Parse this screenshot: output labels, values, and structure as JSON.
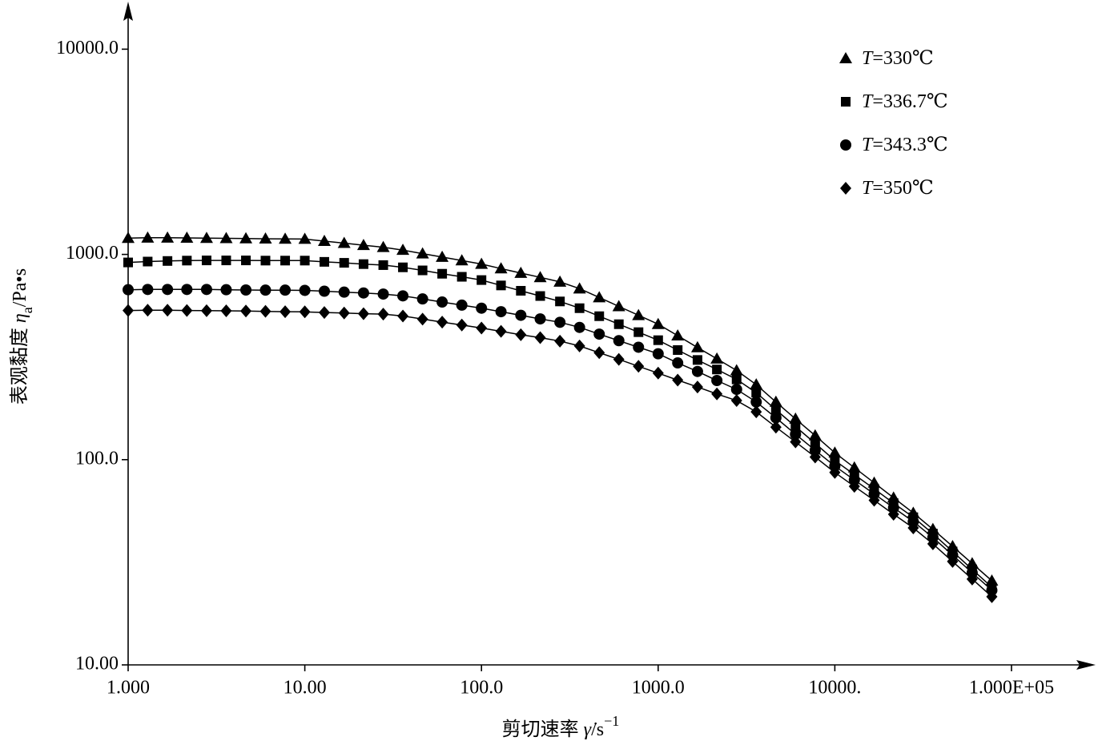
{
  "chart_data": {
    "type": "scatter",
    "xlabel": [
      "剪切速率 ",
      "γ̇",
      "/s",
      "−1"
    ],
    "ylabel": [
      "表观黏度 ",
      "η",
      "a",
      "/Pa•s"
    ],
    "log_x": true,
    "log_y": true,
    "legend": "top-right",
    "xlim": [
      1,
      290000
    ],
    "ylim": [
      10,
      16600
    ],
    "xticks": [
      {
        "value": 1,
        "label": "1.000"
      },
      {
        "value": 10,
        "label": "10.00"
      },
      {
        "value": 100,
        "label": "100.0"
      },
      {
        "value": 1000,
        "label": "1000.0"
      },
      {
        "value": 10000,
        "label": "10000."
      },
      {
        "value": 100000,
        "label": "1.000E+05"
      }
    ],
    "yticks": [
      {
        "value": 10,
        "label": "10.00"
      },
      {
        "value": 100,
        "label": "100.0"
      },
      {
        "value": 1000,
        "label": "1000.0"
      },
      {
        "value": 10000,
        "label": "10000.0"
      }
    ],
    "x": [
      1,
      1.29,
      1.67,
      2.15,
      2.78,
      3.59,
      4.64,
      5.99,
      7.74,
      10,
      12.9,
      16.7,
      21.5,
      27.8,
      35.9,
      46.4,
      59.9,
      77.4,
      100,
      129,
      167,
      215,
      278,
      359,
      464,
      599,
      774,
      1000,
      1290,
      1670,
      2150,
      2780,
      3590,
      4640,
      5990,
      7740,
      10000,
      12900,
      16700,
      21500,
      27800,
      35900,
      46400,
      59900,
      77400
    ],
    "series": [
      {
        "name": "T=330℃",
        "marker": "triangle",
        "color": "#000000",
        "values": [
          1200,
          1205,
          1205,
          1203,
          1200,
          1198,
          1195,
          1192,
          1190,
          1188,
          1161,
          1135,
          1109,
          1084,
          1050,
          1009,
          971,
          933,
          898,
          853,
          811,
          773,
          735,
          681,
          617,
          558,
          505,
          457,
          402,
          352,
          310,
          272,
          232,
          191,
          158,
          131,
          108,
          91.4,
          77.1,
          65.2,
          55.0,
          45.8,
          37.8,
          31.2,
          25.7
        ]
      },
      {
        "name": "T=336.7℃",
        "marker": "square",
        "color": "#000000",
        "values": [
          914,
          923,
          929,
          933,
          935,
          935,
          935,
          933,
          933,
          933,
          920,
          910,
          897,
          887,
          865,
          836,
          805,
          778,
          750,
          706,
          665,
          627,
          590,
          547,
          500,
          457,
          418,
          382,
          342,
          306,
          275,
          246,
          212,
          175,
          145,
          120,
          99.1,
          84.5,
          72.1,
          61.4,
          52.4,
          43.6,
          35.7,
          29.2,
          23.9
        ]
      },
      {
        "name": "T=343.3℃",
        "marker": "circle",
        "color": "#000000",
        "values": [
          673,
          675,
          675,
          675,
          675,
          673,
          671,
          670,
          670,
          668,
          662,
          655,
          649,
          641,
          628,
          607,
          586,
          566,
          547,
          526,
          505,
          485,
          467,
          441,
          409,
          380,
          353,
          328,
          296,
          269,
          243,
          220,
          191,
          160,
          133,
          111,
          93.1,
          79.6,
          68.1,
          58.3,
          49.9,
          41.8,
          34.3,
          28.1,
          23.1
        ]
      },
      {
        "name": "T=350℃",
        "marker": "diamond",
        "color": "#000000",
        "values": [
          533,
          535,
          535,
          533,
          532,
          531,
          530,
          528,
          526,
          525,
          521,
          518,
          514,
          512,
          501,
          484,
          468,
          453,
          438,
          422,
          406,
          393,
          378,
          358,
          332,
          308,
          285,
          264,
          244,
          226,
          209,
          194,
          171,
          144,
          122,
          103,
          86.6,
          74.1,
          63.4,
          54.2,
          46.5,
          38.9,
          31.9,
          26.2,
          21.5
        ]
      }
    ]
  }
}
